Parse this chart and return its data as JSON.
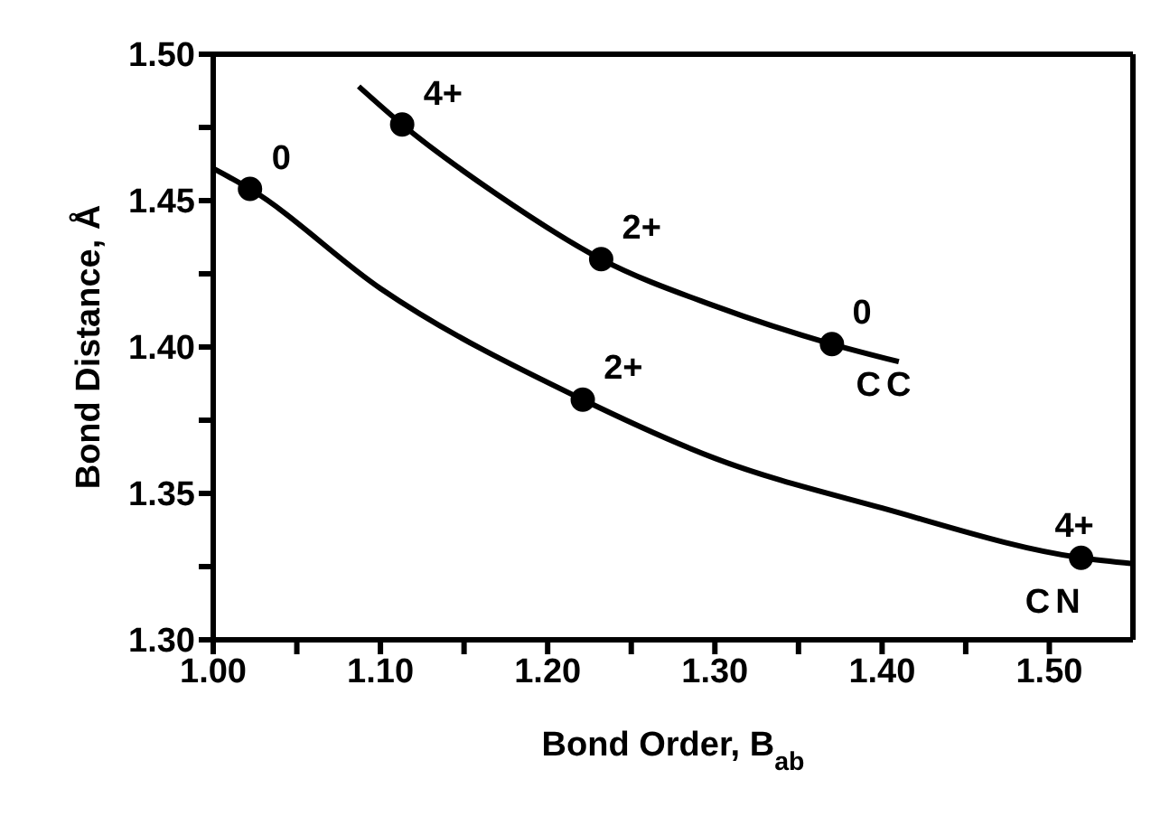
{
  "chart_data": {
    "type": "scatter",
    "xlabel": "Bond Order, B$_{ab}$",
    "ylabel": "Bond Distance, Å",
    "xlim": [
      1.0,
      1.55
    ],
    "ylim": [
      1.3,
      1.5
    ],
    "xticks": [
      {
        "value": 1.0,
        "label": "1.00"
      },
      {
        "value": 1.05,
        "label": null
      },
      {
        "value": 1.1,
        "label": "1.10"
      },
      {
        "value": 1.15,
        "label": null
      },
      {
        "value": 1.2,
        "label": "1.20"
      },
      {
        "value": 1.25,
        "label": null
      },
      {
        "value": 1.3,
        "label": "1.30"
      },
      {
        "value": 1.35,
        "label": null
      },
      {
        "value": 1.4,
        "label": "1.40"
      },
      {
        "value": 1.45,
        "label": null
      },
      {
        "value": 1.5,
        "label": "1.50"
      }
    ],
    "yticks": [
      {
        "value": 1.3,
        "label": "1.30"
      },
      {
        "value": 1.325,
        "label": null
      },
      1.35,
      {
        "value": 1.375,
        "label": null
      },
      {
        "value": 1.4,
        "label": "1.40"
      },
      {
        "value": 1.425,
        "label": null
      },
      1.45,
      {
        "value": 1.475,
        "label": null
      },
      {
        "value": 1.5,
        "label": "1.50"
      }
    ],
    "legend": false,
    "marker": "circle",
    "series": [
      {
        "type": "line",
        "marker": "none",
        "color": "#000000",
        "x": [
          1.087,
          1.113,
          1.17,
          1.232,
          1.3,
          1.37,
          1.41
        ],
        "values": [
          1.489,
          1.476,
          1.452,
          1.43,
          1.414,
          1.401,
          1.395
        ]
      },
      {
        "type": "line",
        "marker": "none",
        "color": "#000000",
        "x": [
          1.0,
          1.022,
          1.1,
          1.221,
          1.3,
          1.4,
          1.519,
          1.55
        ],
        "values": [
          1.461,
          1.454,
          1.42,
          1.382,
          1.362,
          1.345,
          1.328,
          1.326
        ]
      },
      {
        "name": "CC",
        "color": "#000000",
        "x": [
          1.113,
          1.232,
          1.37
        ],
        "values": [
          1.476,
          1.43,
          1.401
        ]
      },
      {
        "name": "CN",
        "color": "#000000",
        "x": [
          1.022,
          1.221,
          1.519
        ],
        "values": [
          1.454,
          1.382,
          1.328
        ]
      }
    ],
    "annotations": [
      {
        "text": "4+",
        "x": 1.113,
        "y": 1.476
      },
      {
        "text": "2+",
        "x": 1.232,
        "y": 1.43
      },
      {
        "text": "0",
        "x": 1.37,
        "y": 1.401
      },
      {
        "text": "0",
        "x": 1.022,
        "y": 1.454
      },
      {
        "text": "2+",
        "x": 1.221,
        "y": 1.382
      },
      {
        "text": "4+",
        "x": 1.519,
        "y": 1.328
      }
    ]
  }
}
